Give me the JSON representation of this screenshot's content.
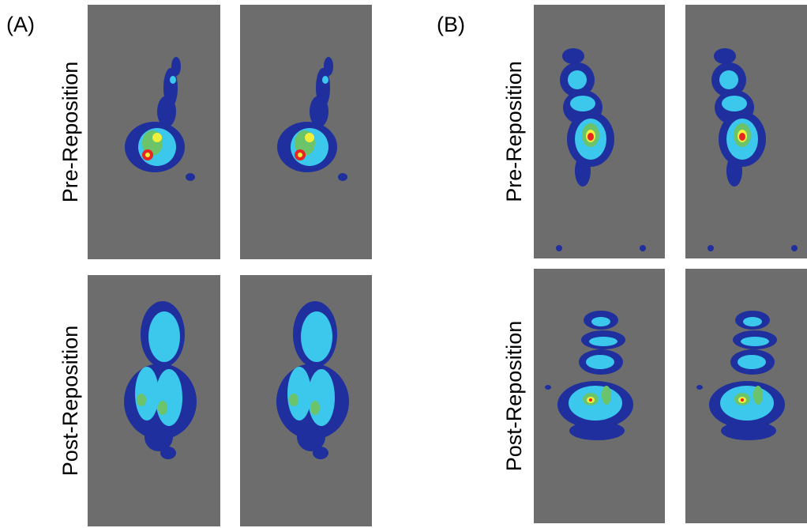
{
  "panels": [
    {
      "label": "(A)",
      "rows": [
        {
          "label": "Pre-Reposition"
        },
        {
          "label": "Post-Reposition"
        }
      ]
    },
    {
      "label": "(B)",
      "rows": [
        {
          "label": "Pre-Reposition"
        },
        {
          "label": "Post-Reposition"
        }
      ]
    }
  ]
}
